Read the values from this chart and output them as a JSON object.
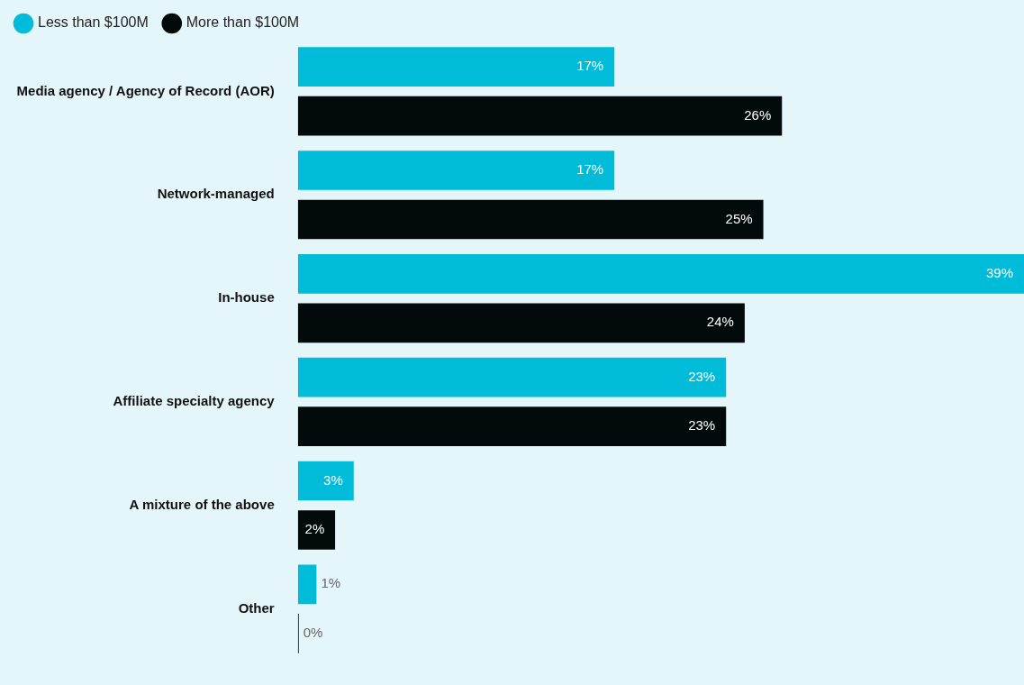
{
  "chart_data": {
    "type": "bar",
    "orientation": "horizontal",
    "categories": [
      "Media agency / Agency of Record (AOR)",
      "Network-managed",
      "In-house",
      "Affiliate specialty agency",
      "A mixture of the above",
      "Other"
    ],
    "series": [
      {
        "name": "Less than $100M",
        "color": "#00bcd8",
        "values": [
          17,
          17,
          39,
          23,
          3,
          1
        ],
        "value_labels": [
          "17%",
          "17%",
          "39%",
          "23%",
          "3%",
          "1%"
        ]
      },
      {
        "name": "More than $100M",
        "color": "#030a0c",
        "values": [
          26,
          25,
          24,
          23,
          2,
          0
        ],
        "value_labels": [
          "26%",
          "25%",
          "24%",
          "23%",
          "2%",
          "0%"
        ]
      }
    ],
    "legend": "top left"
  }
}
